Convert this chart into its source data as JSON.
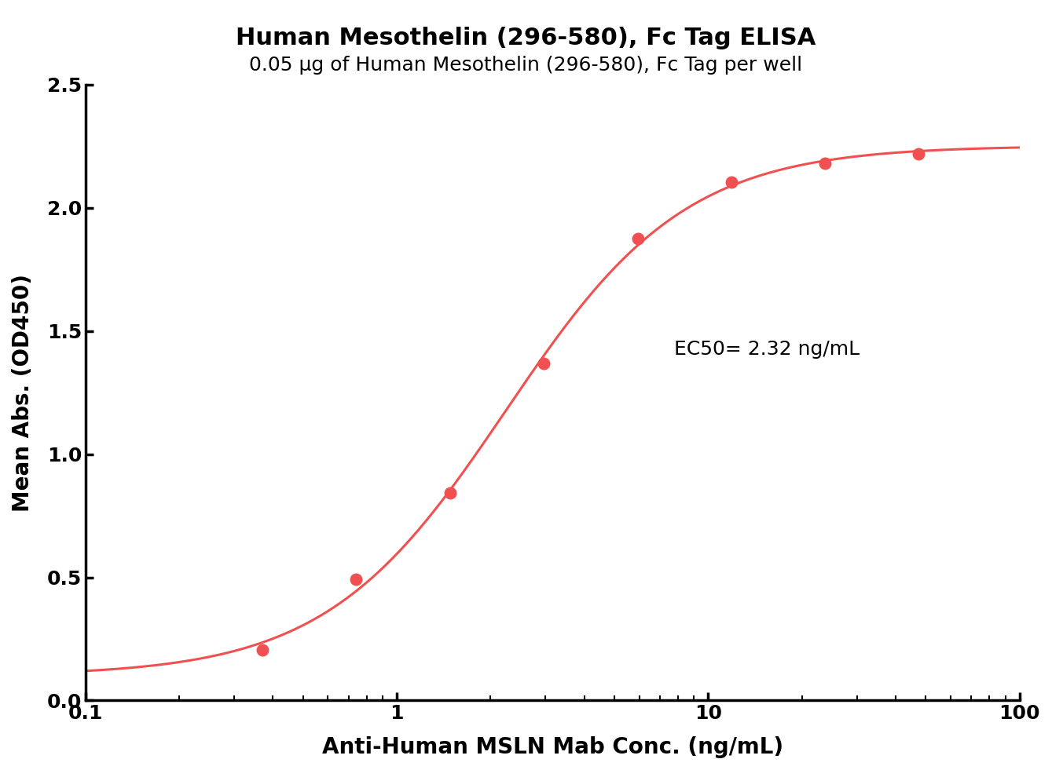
{
  "title": "Human Mesothelin (296-580), Fc Tag ELISA",
  "subtitle": "0.05 μg of Human Mesothelin (296-580), Fc Tag per well",
  "xlabel": "Anti-Human MSLN Mab Conc. (ng/mL)",
  "ylabel": "Mean Abs. (OD450)",
  "x_data": [
    0.37,
    0.74,
    1.48,
    2.96,
    5.93,
    11.85,
    23.7,
    47.4
  ],
  "y_data": [
    0.207,
    0.492,
    0.842,
    1.37,
    1.875,
    2.105,
    2.18,
    2.22
  ],
  "ec50_text": "EC50= 2.32 ng/mL",
  "xmin": 0.1,
  "xmax": 100,
  "ymin": 0.0,
  "ymax": 2.5,
  "line_color": "#f05050",
  "dot_color": "#f05050",
  "title_fontsize": 22,
  "subtitle_fontsize": 18,
  "label_fontsize": 20,
  "tick_fontsize": 18,
  "ec50_fontsize": 18,
  "background_color": "#ffffff"
}
